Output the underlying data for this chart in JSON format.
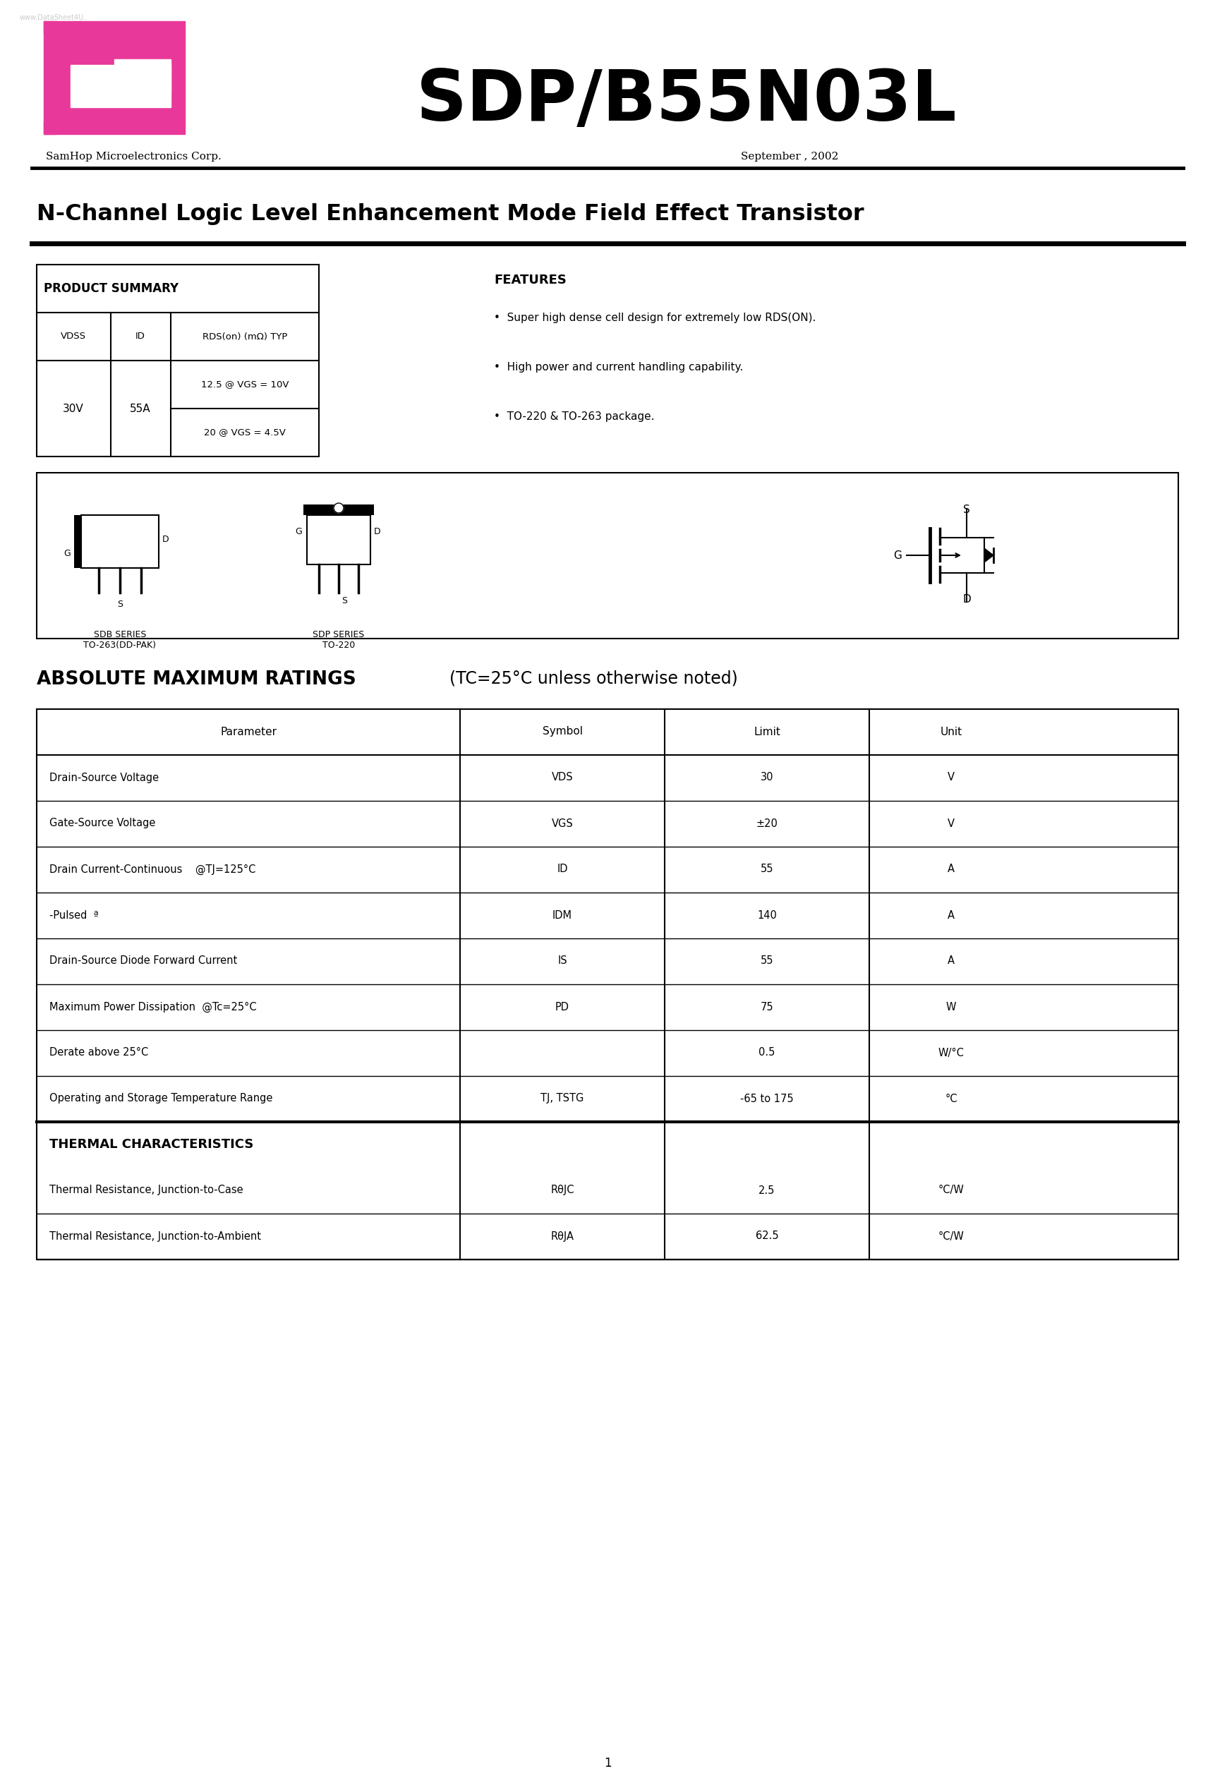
{
  "title_part": "SDP/B55N03L",
  "subtitle": "N-Channel Logic Level Enhancement Mode Field Effect Transistor",
  "company": "SamHop Microelectronics Corp.",
  "date": "September , 2002",
  "watermark": "www.DataSheet4U..",
  "product_summary_title": "PRODUCT SUMMARY",
  "features_title": "FEATURES",
  "features": [
    "Super high dense cell design for extremely low RDS(ON).",
    "High power and current handling capability.",
    "TO-220 & TO-263 package."
  ],
  "abs_max_title": "ABSOLUTE MAXIMUM RATINGS",
  "abs_max_subtitle": "  (TC=25°C unless otherwise noted)",
  "abs_max_headers": [
    "Parameter",
    "Symbol",
    "Limit",
    "Unit"
  ],
  "abs_max_rows": [
    [
      "Drain-Source Voltage",
      "VDS",
      "30",
      "V"
    ],
    [
      "Gate-Source Voltage",
      "VGS",
      "±20",
      "V"
    ],
    [
      "Drain Current-Continuous    @TJ=125°C",
      "ID",
      "55",
      "A"
    ],
    [
      "-Pulsed  ª",
      "IDM",
      "140",
      "A"
    ],
    [
      "Drain-Source Diode Forward Current",
      "IS",
      "55",
      "A"
    ],
    [
      "Maximum Power Dissipation  @Tc=25°C",
      "PD",
      "75",
      "W"
    ],
    [
      "Derate above 25°C",
      "",
      "0.5",
      "W/°C"
    ],
    [
      "Operating and Storage Temperature Range",
      "TJ, TSTG",
      "-65 to 175",
      "°C"
    ]
  ],
  "thermal_title": "THERMAL CHARACTERISTICS",
  "thermal_rows": [
    [
      "Thermal Resistance, Junction-to-Case",
      "RθJC",
      "2.5",
      "°C/W"
    ],
    [
      "Thermal Resistance, Junction-to-Ambient",
      "RθJA",
      "62.5",
      "°C/W"
    ]
  ],
  "page_num": "1",
  "logo_color": "#E8389A",
  "text_color": "#000000",
  "bg_color": "#ffffff"
}
